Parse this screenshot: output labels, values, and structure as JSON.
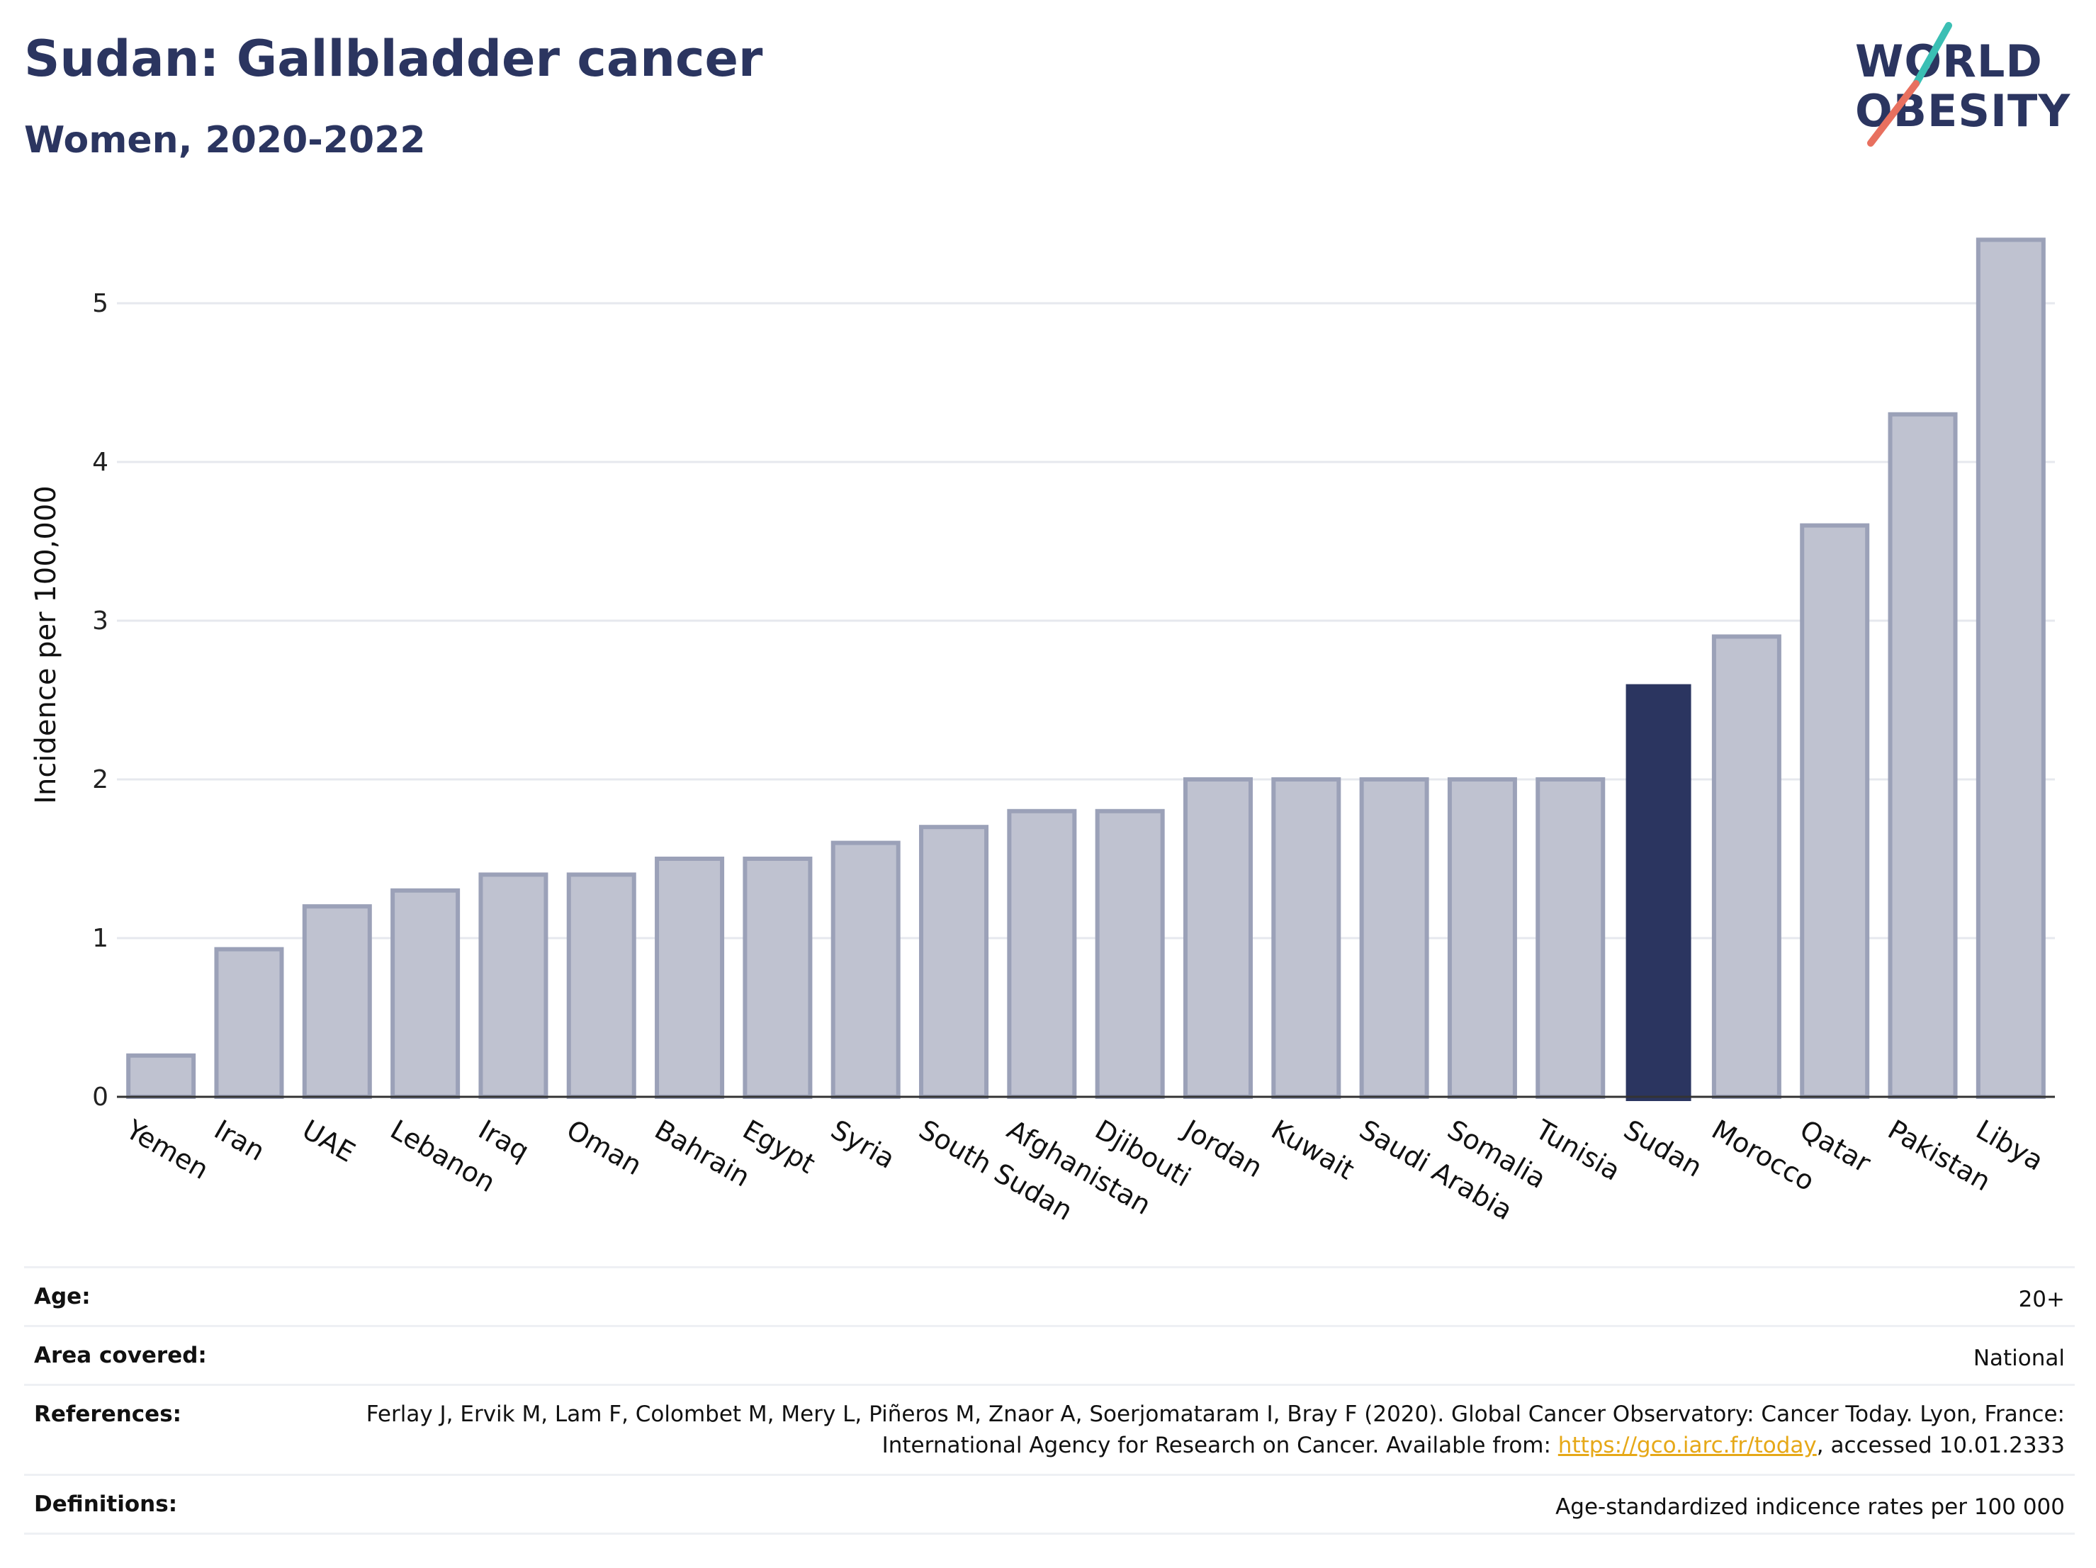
{
  "header": {
    "title": "Sudan: Gallbladder cancer",
    "subtitle": "Women, 2020-2022"
  },
  "logo": {
    "line1": "WORLD",
    "line2": "OBESITY"
  },
  "chart_data": {
    "type": "bar",
    "ylabel": "Incidence per 100,000",
    "xlabel": "",
    "ylim": [
      0,
      5.5
    ],
    "yticks": [
      0,
      1,
      2,
      3,
      4,
      5
    ],
    "grid": true,
    "highlight": "Sudan",
    "categories": [
      "Yemen",
      "Iran",
      "UAE",
      "Lebanon",
      "Iraq",
      "Oman",
      "Bahrain",
      "Egypt",
      "Syria",
      "South Sudan",
      "Afghanistan",
      "Djibouti",
      "Jordan",
      "Kuwait",
      "Saudi Arabia",
      "Somalia",
      "Tunisia",
      "Sudan",
      "Morocco",
      "Qatar",
      "Pakistan",
      "Libya"
    ],
    "values": [
      0.26,
      0.93,
      1.2,
      1.3,
      1.4,
      1.4,
      1.5,
      1.5,
      1.6,
      1.7,
      1.8,
      1.8,
      2.0,
      2.0,
      2.0,
      2.0,
      2.0,
      2.6,
      2.9,
      3.6,
      4.3,
      5.4
    ],
    "colors": {
      "bar": "#bfc2d0",
      "bar_border": "#9ba1b8",
      "highlight": "#2b3560",
      "grid": "#e6e8ee",
      "axis": "#333333"
    }
  },
  "info": {
    "age_label": "Age:",
    "age_value": "20+",
    "area_label": "Area covered:",
    "area_value": "National",
    "references_label": "References:",
    "references_text": "Ferlay J, Ervik M, Lam F, Colombet M, Mery L, Piñeros M, Znaor A, Soerjomataram I, Bray F (2020). Global Cancer Observatory: Cancer Today. Lyon, France: International Agency for Research on Cancer. Available from: ",
    "references_link": "https://gco.iarc.fr/today",
    "references_suffix": ", accessed 10.01.2333",
    "definitions_label": "Definitions:",
    "definitions_value": "Age-standardized indicence rates per 100 000"
  }
}
